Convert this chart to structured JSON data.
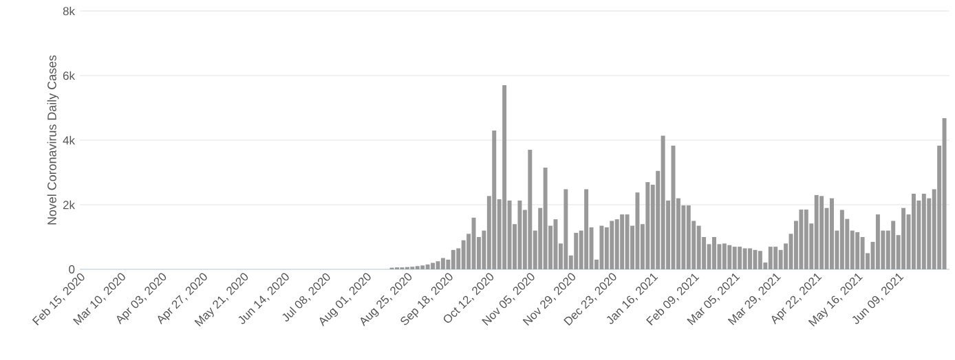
{
  "chart_data": {
    "type": "bar",
    "ylabel": "Novel Coronavirus Daily Cases",
    "x": [
      "2020-08-16",
      "2020-08-19",
      "2020-08-22",
      "2020-08-25",
      "2020-08-28",
      "2020-08-31",
      "2020-09-03",
      "2020-09-06",
      "2020-09-09",
      "2020-09-12",
      "2020-09-15",
      "2020-09-18",
      "2020-09-21",
      "2020-09-24",
      "2020-09-27",
      "2020-09-30",
      "2020-10-03",
      "2020-10-06",
      "2020-10-09",
      "2020-10-12",
      "2020-10-15",
      "2020-10-18",
      "2020-10-21",
      "2020-10-24",
      "2020-10-27",
      "2020-10-30",
      "2020-11-02",
      "2020-11-05",
      "2020-11-08",
      "2020-11-11",
      "2020-11-14",
      "2020-11-17",
      "2020-11-20",
      "2020-11-23",
      "2020-11-26",
      "2020-11-29",
      "2020-12-02",
      "2020-12-05",
      "2020-12-08",
      "2020-12-11",
      "2020-12-14",
      "2020-12-17",
      "2020-12-20",
      "2020-12-23",
      "2020-12-26",
      "2020-12-29",
      "2021-01-01",
      "2021-01-04",
      "2021-01-07",
      "2021-01-10",
      "2021-01-13",
      "2021-01-16",
      "2021-01-19",
      "2021-01-22",
      "2021-01-25",
      "2021-01-28",
      "2021-01-31",
      "2021-02-03",
      "2021-02-06",
      "2021-02-09",
      "2021-02-12",
      "2021-02-15",
      "2021-02-18",
      "2021-02-21",
      "2021-02-24",
      "2021-02-27",
      "2021-03-02",
      "2021-03-05",
      "2021-03-08",
      "2021-03-11",
      "2021-03-14",
      "2021-03-17",
      "2021-03-20",
      "2021-03-23",
      "2021-03-26",
      "2021-03-29",
      "2021-04-01",
      "2021-04-04",
      "2021-04-07",
      "2021-04-10",
      "2021-04-13",
      "2021-04-16",
      "2021-04-19",
      "2021-04-22",
      "2021-04-25",
      "2021-04-28",
      "2021-05-01",
      "2021-05-04",
      "2021-05-07",
      "2021-05-10",
      "2021-05-13",
      "2021-05-16",
      "2021-05-19",
      "2021-05-22",
      "2021-05-25",
      "2021-05-28",
      "2021-05-31",
      "2021-06-03",
      "2021-06-06",
      "2021-06-09",
      "2021-06-12",
      "2021-06-15",
      "2021-06-18",
      "2021-06-21",
      "2021-06-24",
      "2021-06-27",
      "2021-06-30",
      "2021-07-03",
      "2021-07-06"
    ],
    "values": [
      50,
      60,
      60,
      70,
      80,
      100,
      120,
      150,
      200,
      250,
      350,
      300,
      600,
      650,
      900,
      1100,
      1600,
      1000,
      1200,
      2270,
      4300,
      2170,
      5700,
      2130,
      1400,
      2130,
      1840,
      3700,
      1200,
      1900,
      3150,
      1350,
      1550,
      800,
      2480,
      430,
      1130,
      1200,
      2480,
      1300,
      300,
      1350,
      1300,
      1500,
      1550,
      1700,
      1700,
      1350,
      2380,
      1400,
      2700,
      2620,
      3050,
      4140,
      2130,
      3830,
      2200,
      1980,
      1980,
      1500,
      1350,
      1000,
      780,
      1000,
      780,
      800,
      750,
      700,
      700,
      650,
      650,
      600,
      570,
      210,
      700,
      700,
      600,
      800,
      1100,
      1500,
      1850,
      1850,
      1420,
      2300,
      2270,
      1900,
      2200,
      1200,
      1840,
      1560,
      1200,
      1150,
      1000,
      500,
      850,
      1700,
      1200,
      1200,
      1500,
      1060,
      1900,
      1700,
      2340,
      2130,
      2340,
      2200,
      2480,
      3830,
      4680
    ],
    "color": "#999999",
    "xlim": [
      "2020-02-15",
      "2021-07-09"
    ],
    "xticks": [
      {
        "value": "2020-02-15",
        "label": "Feb 15, 2020"
      },
      {
        "value": "2020-03-10",
        "label": "Mar 10, 2020"
      },
      {
        "value": "2020-04-03",
        "label": "Apr 03, 2020"
      },
      {
        "value": "2020-04-27",
        "label": "Apr 27, 2020"
      },
      {
        "value": "2020-05-21",
        "label": "May 21, 2020"
      },
      {
        "value": "2020-06-14",
        "label": "Jun 14, 2020"
      },
      {
        "value": "2020-07-08",
        "label": "Jul 08, 2020"
      },
      {
        "value": "2020-08-01",
        "label": "Aug 01, 2020"
      },
      {
        "value": "2020-08-25",
        "label": "Aug 25, 2020"
      },
      {
        "value": "2020-09-18",
        "label": "Sep 18, 2020"
      },
      {
        "value": "2020-10-12",
        "label": "Oct 12, 2020"
      },
      {
        "value": "2020-11-05",
        "label": "Nov 05, 2020"
      },
      {
        "value": "2020-11-29",
        "label": "Nov 29, 2020"
      },
      {
        "value": "2020-12-23",
        "label": "Dec 23, 2020"
      },
      {
        "value": "2021-01-16",
        "label": "Jan 16, 2021"
      },
      {
        "value": "2021-02-09",
        "label": "Feb 09, 2021"
      },
      {
        "value": "2021-03-05",
        "label": "Mar 05, 2021"
      },
      {
        "value": "2021-03-29",
        "label": "Mar 29, 2021"
      },
      {
        "value": "2021-04-22",
        "label": "Apr 22, 2021"
      },
      {
        "value": "2021-05-16",
        "label": "May 16, 2021"
      },
      {
        "value": "2021-06-09",
        "label": "Jun 09, 2021"
      }
    ],
    "ylim": [
      0,
      8000
    ],
    "yticks": [
      0,
      {
        "value": 2000,
        "label": "2k"
      },
      {
        "value": 4000,
        "label": "4k"
      },
      {
        "value": 6000,
        "label": "6k"
      },
      {
        "value": 8000,
        "label": "8k"
      }
    ],
    "grid": "y"
  }
}
